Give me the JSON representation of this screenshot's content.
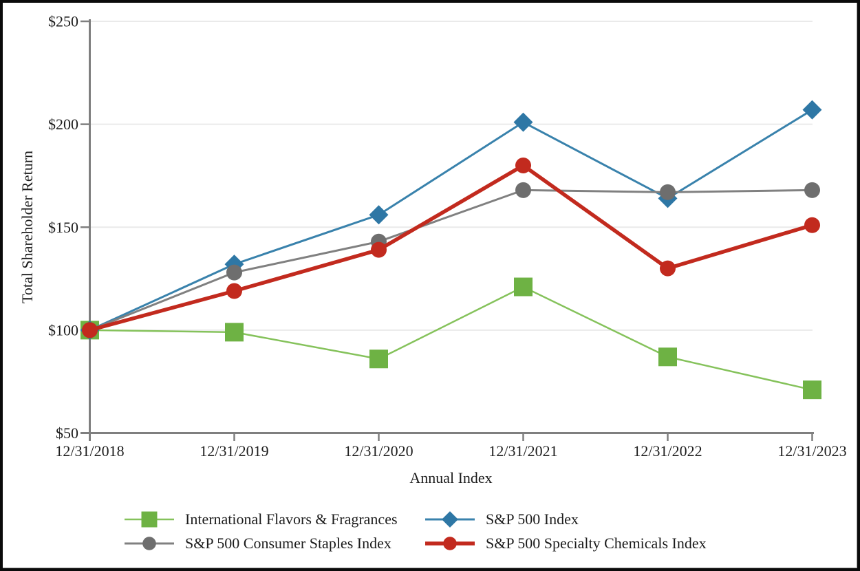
{
  "chart_data": {
    "type": "line",
    "title": "",
    "xlabel": "Annual Index",
    "ylabel": "Total Shareholder Return",
    "categories": [
      "12/31/2018",
      "12/31/2019",
      "12/31/2020",
      "12/31/2021",
      "12/31/2022",
      "12/31/2023"
    ],
    "y_ticks": [
      50,
      100,
      150,
      200,
      250
    ],
    "y_tick_labels": [
      "$50",
      "$100",
      "$150",
      "$200",
      "$250"
    ],
    "ylim": [
      50,
      250
    ],
    "grid": true,
    "legend_position": "bottom",
    "series": [
      {
        "name": "International Flavors & Fragrances",
        "marker": "square",
        "marker_color": "#6EB244",
        "line_color": "#85C25B",
        "line_width": 2.5,
        "values": [
          100,
          99,
          86,
          121,
          87,
          71
        ]
      },
      {
        "name": "S&P 500 Index",
        "marker": "diamond",
        "marker_color": "#2E77A5",
        "line_color": "#3982AC",
        "line_width": 3,
        "values": [
          100,
          132,
          156,
          201,
          164,
          207
        ]
      },
      {
        "name": "S&P 500 Consumer Staples Index",
        "marker": "circle",
        "marker_color": "#6E6E6E",
        "line_color": "#808080",
        "line_width": 3,
        "values": [
          100,
          128,
          143,
          168,
          167,
          168
        ]
      },
      {
        "name": "S&P 500 Specialty Chemicals Index",
        "marker": "circle",
        "marker_color": "#C22A1E",
        "line_color": "#C22A1E",
        "line_width": 5.5,
        "values": [
          100,
          119,
          139,
          180,
          130,
          151
        ]
      }
    ],
    "style": {
      "axis_color": "#7F7F7F",
      "grid_color": "#EAEAEA",
      "text_color": "#1C1C1C",
      "background": "#FFFFFF",
      "frame_color": "#0B0B0B"
    }
  }
}
